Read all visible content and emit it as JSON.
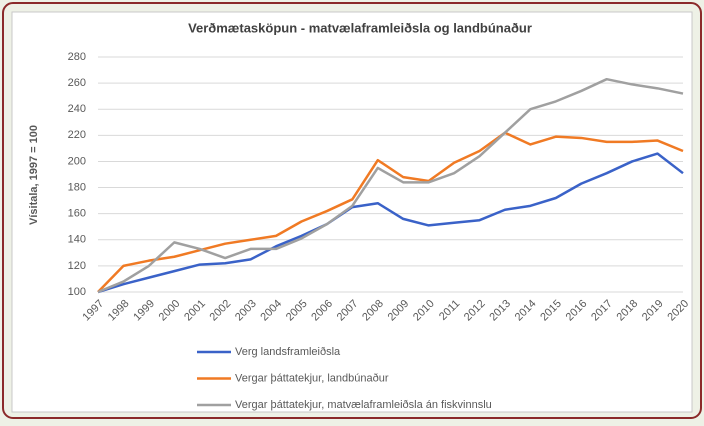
{
  "chart_data": {
    "type": "line",
    "title": "Verðmætasköpun - matvælaframleiðsla og landbúnaður",
    "y_label": "Vísitala, 1997 = 100",
    "categories": [
      "1997",
      "1998",
      "1999",
      "2000",
      "2001",
      "2002",
      "2003",
      "2004",
      "2005",
      "2006",
      "2007",
      "2008",
      "2009",
      "2010",
      "2011",
      "2012",
      "2013",
      "2014",
      "2015",
      "2016",
      "2017",
      "2018",
      "2019",
      "2020"
    ],
    "series": [
      {
        "name": "Verg landsframleiðsla",
        "color": "#3a62c8",
        "values": [
          100,
          106,
          111,
          116,
          121,
          122,
          125,
          135,
          143,
          152,
          165,
          168,
          156,
          151,
          153,
          155,
          163,
          166,
          172,
          183,
          191,
          200,
          206,
          191
        ]
      },
      {
        "name": "Vergar þáttatekjur, landbúnaður",
        "color": "#f07a24",
        "values": [
          100,
          120,
          124,
          127,
          132,
          137,
          140,
          143,
          154,
          162,
          171,
          201,
          188,
          185,
          199,
          208,
          222,
          213,
          219,
          218,
          215,
          215,
          216,
          208
        ]
      },
      {
        "name": "Vergar þáttatekjur, matvælaframleiðsla án fiskvinnslu",
        "color": "#a0a0a0",
        "values": [
          100,
          108,
          120,
          138,
          133,
          126,
          133,
          133,
          141,
          152,
          166,
          195,
          184,
          184,
          191,
          204,
          222,
          240,
          246,
          254,
          263,
          259,
          256,
          252
        ]
      }
    ],
    "ylim": [
      100,
      280
    ],
    "yticks": [
      100,
      120,
      140,
      160,
      180,
      200,
      220,
      240,
      260,
      280
    ],
    "grid": true,
    "legend": "bottom"
  }
}
